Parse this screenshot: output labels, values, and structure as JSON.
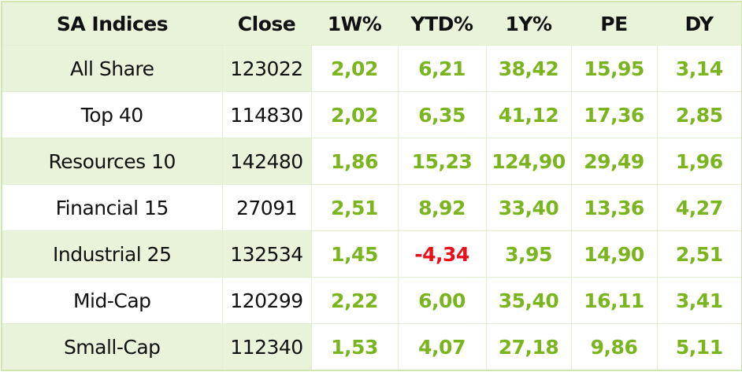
{
  "table": {
    "header": [
      "SA Indices",
      "Close",
      "1W%",
      "YTD%",
      "1Y%",
      "PE",
      "DY"
    ],
    "rows": [
      [
        "All Share",
        "123022",
        "2,02",
        "6,21",
        "38,42",
        "15,95",
        "3,14"
      ],
      [
        "Top 40",
        "114830",
        "2,02",
        "6,35",
        "41,12",
        "17,36",
        "2,85"
      ],
      [
        "Resources 10",
        "142480",
        "1,86",
        "15,23",
        "124,90",
        "29,49",
        "1,96"
      ],
      [
        "Financial 15",
        "27091",
        "2,51",
        "8,92",
        "33,40",
        "13,36",
        "4,27"
      ],
      [
        "Industrial 25",
        "132534",
        "1,45",
        "-4,34",
        "3,95",
        "14,90",
        "2,51"
      ],
      [
        "Mid-Cap",
        "120299",
        "2,22",
        "6,00",
        "35,40",
        "16,11",
        "3,41"
      ],
      [
        "Small-Cap",
        "112340",
        "1,53",
        "4,07",
        "27,18",
        "9,86",
        "5,11"
      ]
    ]
  }
}
